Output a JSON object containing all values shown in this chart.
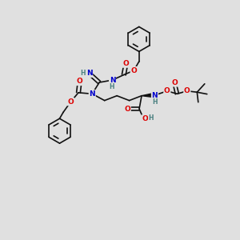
{
  "bg_color": "#e0e0e0",
  "bond_color": "#111111",
  "bond_width": 1.2,
  "atom_colors": {
    "O": "#dd0000",
    "N": "#0000cc",
    "H": "#4a8080",
    "C": "#111111"
  },
  "font_size_atom": 6.5,
  "font_size_h": 5.5
}
